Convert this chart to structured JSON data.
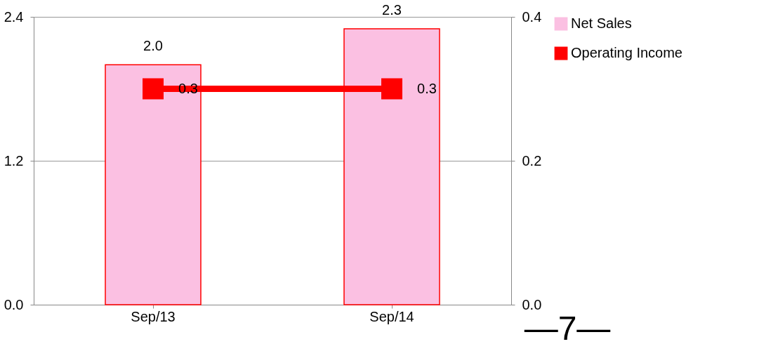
{
  "chart_data": {
    "type": "bar",
    "categories": [
      "Sep/13",
      "Sep/14"
    ],
    "series": [
      {
        "name": "Net Sales",
        "color": "#fbc0e2",
        "values": [
          2.0,
          2.3
        ],
        "value_labels": [
          "2.0",
          "2.3"
        ]
      },
      {
        "name": "Operating Income",
        "type": "line",
        "axis": "y2",
        "color": "#ff0000",
        "values": [
          0.3,
          0.3
        ],
        "value_labels": [
          "0.3",
          "0.3"
        ]
      }
    ],
    "ylim": [
      0,
      2.4
    ],
    "yticks": [
      {
        "value": 0,
        "label": "0.0"
      },
      {
        "value": 1.2,
        "label": "1.2"
      },
      {
        "value": 2.4,
        "label": "2.4"
      }
    ],
    "y2lim": [
      0,
      0.4
    ],
    "y2ticks": [
      {
        "value": 0,
        "label": "0.0"
      },
      {
        "value": 0.2,
        "label": "0.2"
      },
      {
        "value": 0.4,
        "label": "0.4"
      }
    ],
    "grid": "y",
    "legend": "right",
    "marker": "square",
    "line_style": "solid",
    "annotations": [
      "—7—"
    ]
  }
}
